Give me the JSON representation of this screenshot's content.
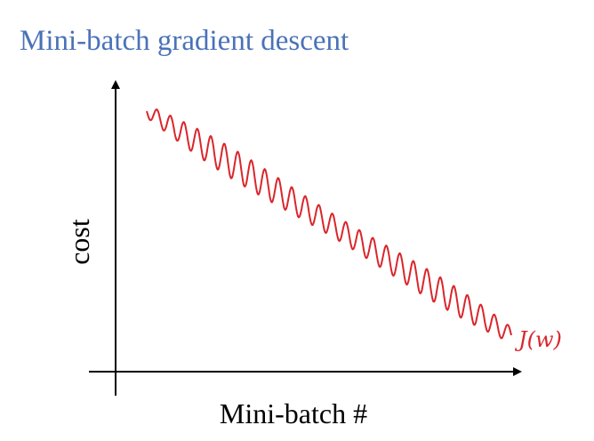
{
  "title": "Mini-batch gradient descent",
  "diagram": {
    "y_axis_label": "cost",
    "x_axis_label": "Mini-batch #",
    "curve_label": "J(w)"
  }
}
